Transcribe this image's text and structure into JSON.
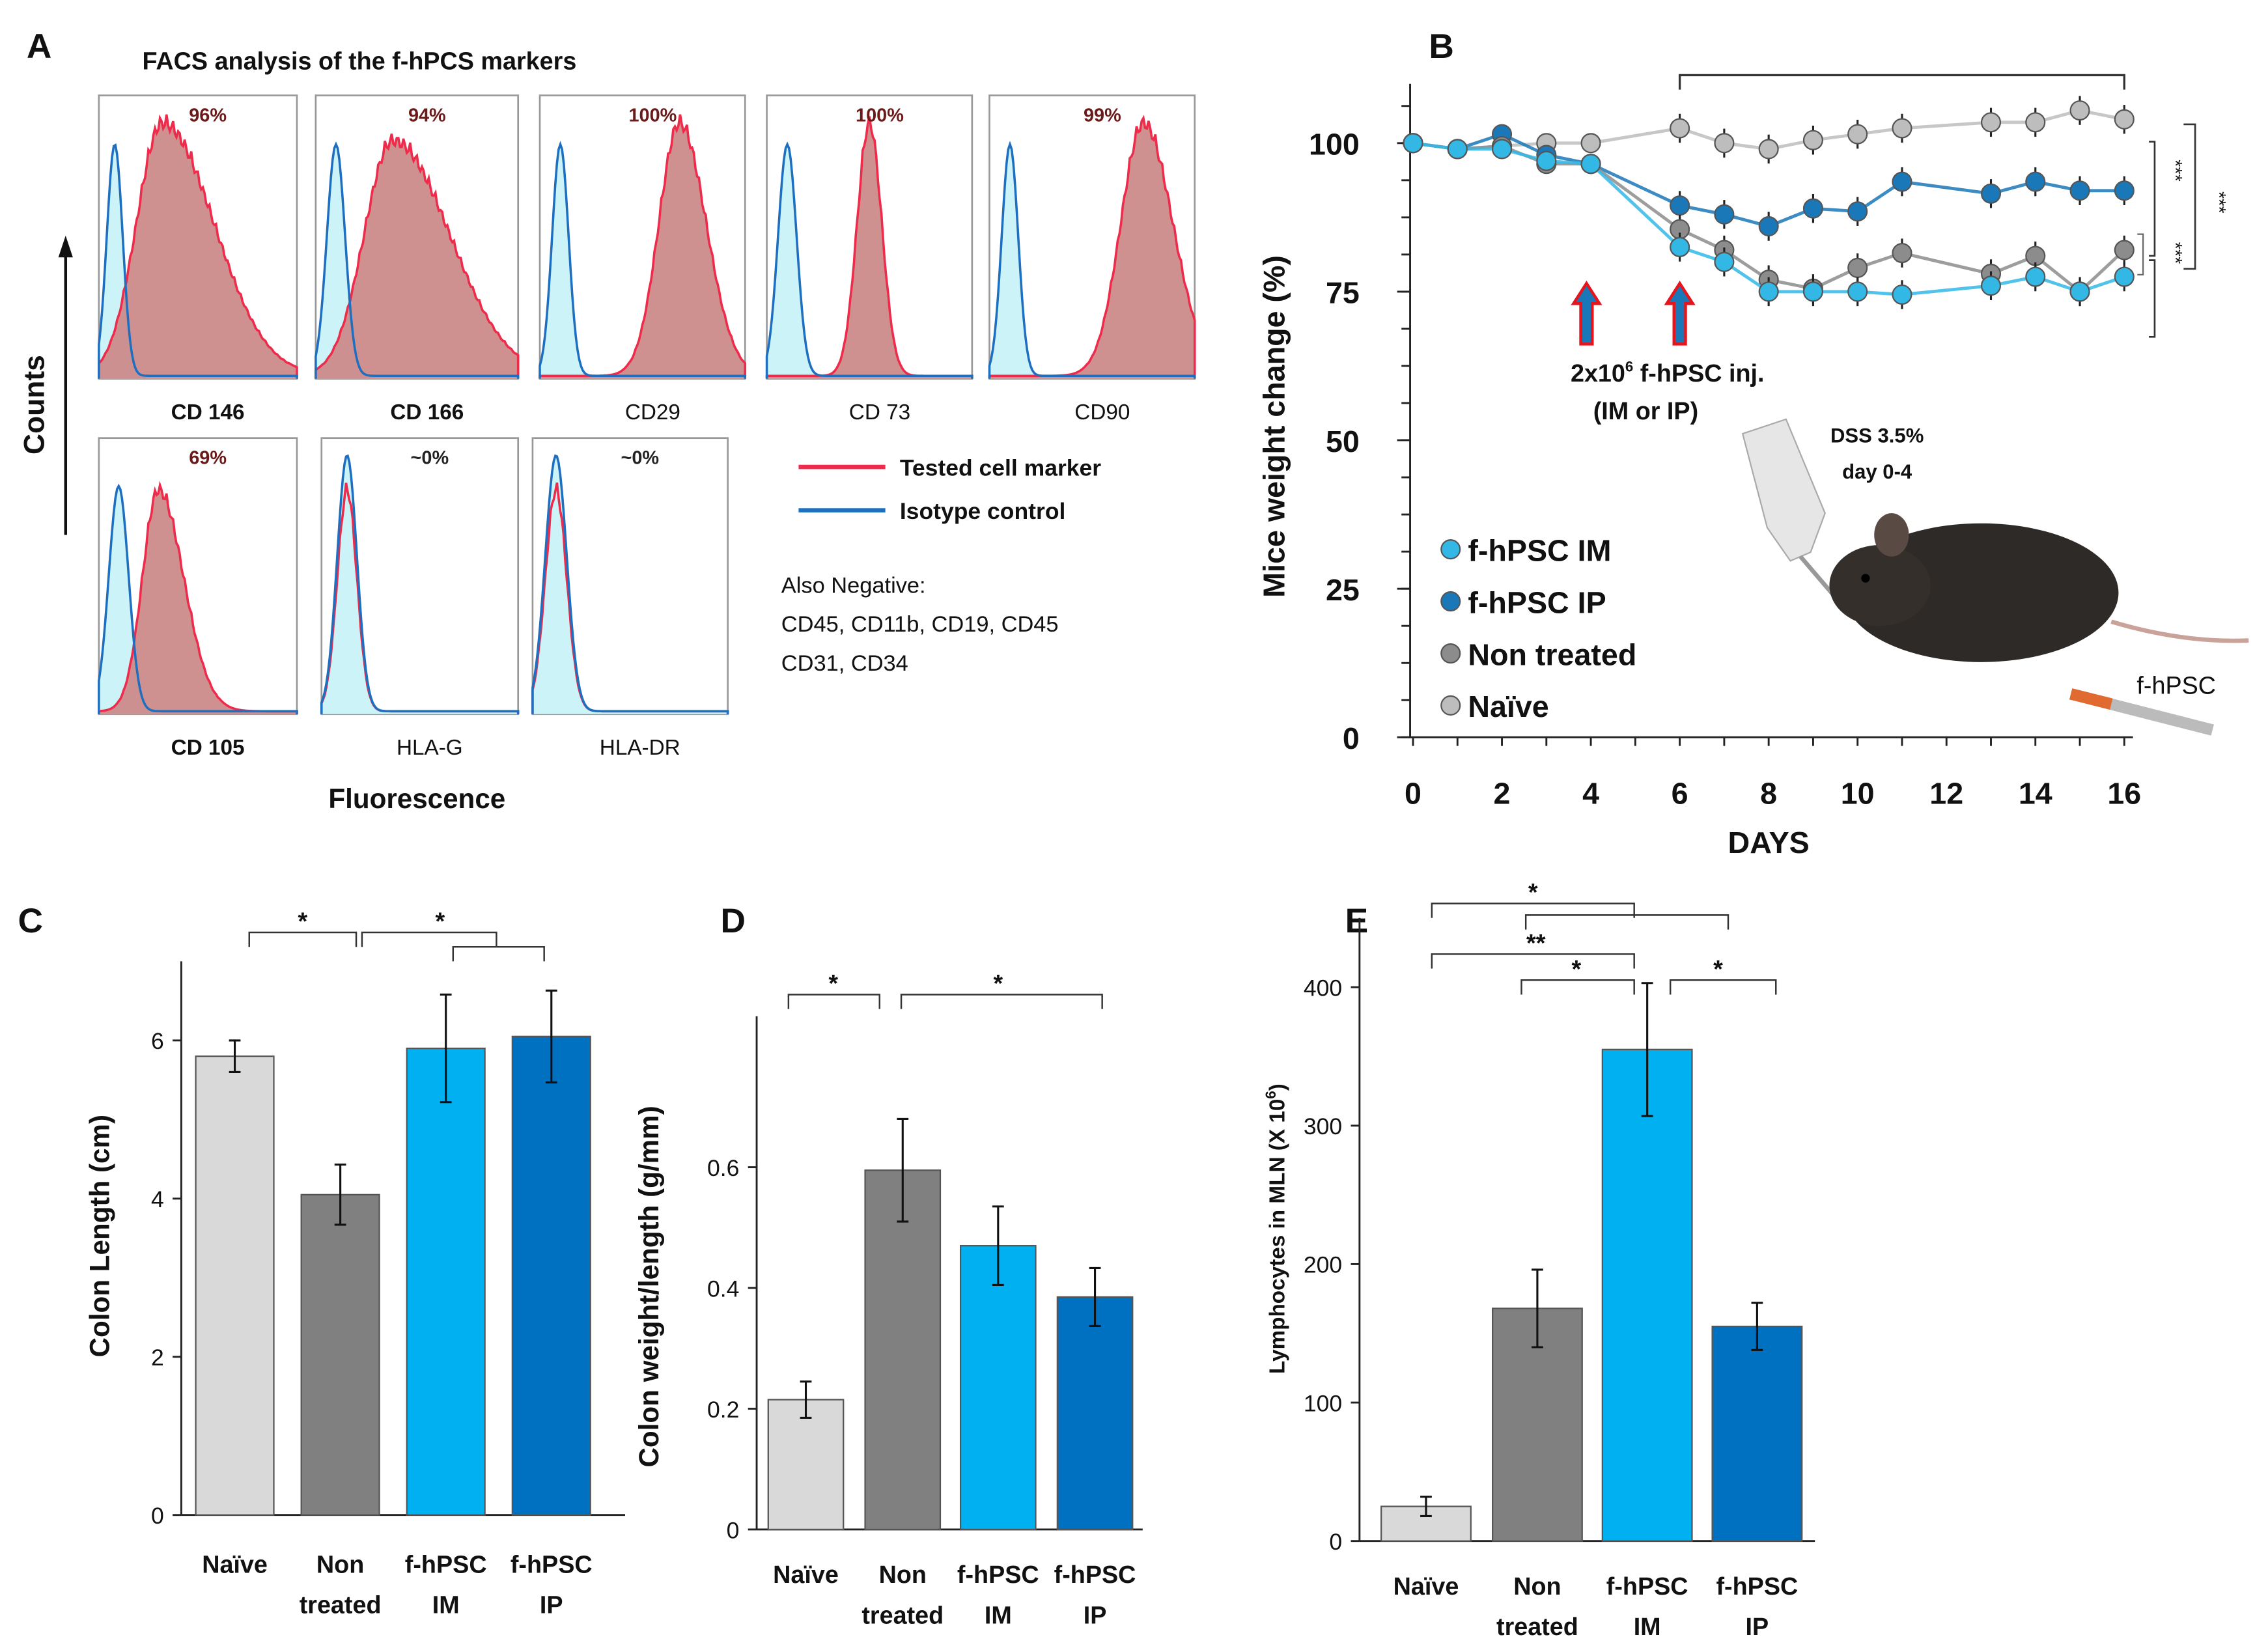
{
  "panels": {
    "a": "A",
    "b": "B",
    "c": "C",
    "d": "D",
    "e": "E"
  },
  "colors": {
    "tested": "#ee2b4b",
    "isotype": "#1f6fc0",
    "isotype_fill": "#ccf4f8",
    "tested_fill": "#cc8a8a",
    "naive": "#d9d9d9",
    "non_treated": "#808080",
    "im": "#00b0f0",
    "ip": "#0070c0"
  },
  "facs": {
    "title": "FACS analysis of the f-hPCS markers",
    "ylabel": "Counts",
    "xlabel": "Fluorescence",
    "histograms": [
      {
        "marker": "CD 146",
        "percent": "96%"
      },
      {
        "marker": "CD 166",
        "percent": "94%"
      },
      {
        "marker": "CD29",
        "percent": "100%"
      },
      {
        "marker": "CD 73",
        "percent": "100%"
      },
      {
        "marker": "CD90",
        "percent": "99%"
      },
      {
        "marker": "CD 105",
        "percent": "69%"
      },
      {
        "marker": "HLA-G",
        "percent": "~0%"
      },
      {
        "marker": "HLA-DR",
        "percent": "~0%"
      }
    ],
    "legend": [
      "Tested cell marker",
      "Isotype control"
    ],
    "note": [
      "Also  Negative:",
      "CD45, CD11b, CD19, CD45",
      "CD31, CD34"
    ]
  },
  "chart_data": [
    {
      "type": "line",
      "ylabel": "Mice weight change (%)",
      "xlabel": "DAYS",
      "xlim": [
        0,
        16
      ],
      "ylim": [
        0,
        110
      ],
      "xticks": [
        0,
        2,
        4,
        6,
        8,
        10,
        12,
        14,
        16
      ],
      "yticks": [
        0,
        25,
        50,
        75,
        100
      ],
      "x": [
        0,
        1,
        2,
        3,
        4,
        6,
        7,
        8,
        9,
        10,
        11,
        13,
        14,
        15,
        16
      ],
      "series": [
        {
          "name": "f-hPSC IM",
          "color": "#33b8e6",
          "values": [
            100,
            99,
            99,
            97,
            96.5,
            82.5,
            80,
            75,
            75,
            75,
            74.5,
            76,
            77.5,
            75,
            77.5
          ]
        },
        {
          "name": "f-hPSC IP",
          "color": "#1a78b8",
          "values": [
            100,
            99,
            101.5,
            98,
            96.5,
            89.5,
            88,
            86,
            89,
            88.5,
            93.5,
            91.5,
            93.5,
            92,
            92
          ]
        },
        {
          "name": "Non treated",
          "color": "#8c8c8c",
          "values": [
            100,
            99,
            99.5,
            96.5,
            96.5,
            85.5,
            82,
            77,
            75.5,
            79,
            81.5,
            78,
            81,
            75,
            82
          ]
        },
        {
          "name": "Naïve",
          "color": "#bdbdbd",
          "values": [
            100,
            99,
            99.5,
            100,
            100,
            102.5,
            100,
            99,
            100.5,
            101.5,
            102.5,
            103.5,
            103.5,
            105.5,
            104
          ]
        }
      ],
      "annotations": {
        "injection": [
          "2x10",
          "6",
          " f-hPSC inj.",
          "(IM or IP)"
        ],
        "injection_days": [
          4,
          6
        ],
        "dss": [
          "DSS 3.5%",
          "day 0-4"
        ],
        "syringe_label": "f-hPSC",
        "significance": [
          "***",
          "***",
          "***"
        ]
      }
    },
    {
      "type": "bar",
      "ylabel": "Colon Length (cm)",
      "ylim": [
        0,
        7
      ],
      "yticks": [
        0,
        2,
        4,
        6
      ],
      "categories": [
        [
          "Naïve",
          ""
        ],
        [
          "Non",
          "treated"
        ],
        [
          "f-hPSC",
          "IM"
        ],
        [
          "f-hPSC",
          "IP"
        ]
      ],
      "values": [
        5.8,
        4.05,
        5.9,
        6.05
      ],
      "errors": [
        0.2,
        0.38,
        0.68,
        0.58
      ],
      "significance": [
        "*",
        "*"
      ]
    },
    {
      "type": "bar",
      "ylabel": "Colon weight/length (g/mm)",
      "ylim": [
        0,
        0.85
      ],
      "yticks": [
        0,
        0.2,
        0.4,
        0.6
      ],
      "categories": [
        [
          "Naïve",
          ""
        ],
        [
          "Non",
          "treated"
        ],
        [
          "f-hPSC",
          "IM"
        ],
        [
          "f-hPSC",
          "IP"
        ]
      ],
      "values": [
        0.215,
        0.595,
        0.47,
        0.385
      ],
      "errors": [
        0.03,
        0.085,
        0.065,
        0.048
      ],
      "significance": [
        "*",
        "*"
      ]
    },
    {
      "type": "bar",
      "ylabel": "Lymphocytes in MLN (X 10",
      "ylabel_sup": "6",
      "ylabel_end": ")",
      "ylim": [
        0,
        450
      ],
      "yticks": [
        0,
        100,
        200,
        300,
        400
      ],
      "categories": [
        [
          "Naïve",
          ""
        ],
        [
          "Non",
          "treated"
        ],
        [
          "f-hPSC",
          "IM"
        ],
        [
          "f-hPSC",
          "IP"
        ]
      ],
      "values": [
        25,
        168,
        355,
        155
      ],
      "errors": [
        7,
        28,
        48,
        17
      ],
      "significance": [
        "*",
        "**",
        "*",
        "*"
      ]
    }
  ]
}
